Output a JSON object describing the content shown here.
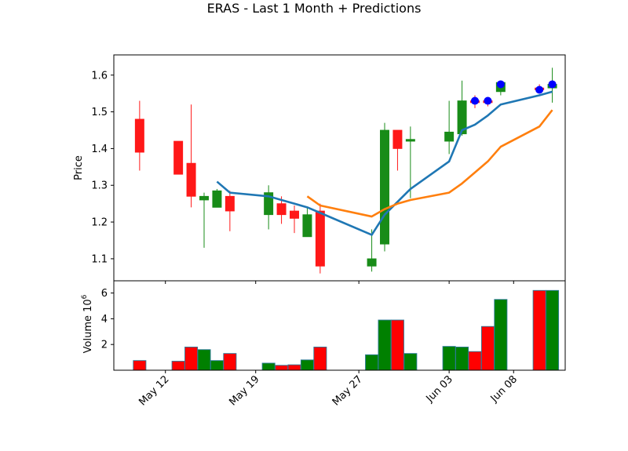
{
  "chart_data": {
    "type": "candlestick",
    "title": "ERAS - Last 1 Month + Predictions",
    "price_panel": {
      "ylabel": "Price",
      "ylim": [
        1.04,
        1.655
      ],
      "yticks": [
        "1.1",
        "1.2",
        "1.3",
        "1.4",
        "1.5",
        "1.6"
      ],
      "ytick_values": [
        1.1,
        1.2,
        1.3,
        1.4,
        1.5,
        1.6
      ],
      "candles": [
        {
          "date": "2024-05-10",
          "open": 1.48,
          "high": 1.53,
          "low": 1.34,
          "close": 1.39
        },
        {
          "date": "2024-05-13",
          "open": 1.42,
          "high": 1.42,
          "low": 1.33,
          "close": 1.33
        },
        {
          "date": "2024-05-14",
          "open": 1.36,
          "high": 1.52,
          "low": 1.24,
          "close": 1.27
        },
        {
          "date": "2024-05-15",
          "open": 1.26,
          "high": 1.28,
          "low": 1.13,
          "close": 1.27
        },
        {
          "date": "2024-05-16",
          "open": 1.24,
          "high": 1.29,
          "low": 1.24,
          "close": 1.285
        },
        {
          "date": "2024-05-17",
          "open": 1.27,
          "high": 1.285,
          "low": 1.175,
          "close": 1.23
        },
        {
          "date": "2024-05-20",
          "open": 1.22,
          "high": 1.3,
          "low": 1.18,
          "close": 1.28
        },
        {
          "date": "2024-05-21",
          "open": 1.25,
          "high": 1.27,
          "low": 1.195,
          "close": 1.22
        },
        {
          "date": "2024-05-22",
          "open": 1.23,
          "high": 1.245,
          "low": 1.17,
          "close": 1.21
        },
        {
          "date": "2024-05-23",
          "open": 1.16,
          "high": 1.24,
          "low": 1.16,
          "close": 1.22
        },
        {
          "date": "2024-05-24",
          "open": 1.23,
          "high": 1.25,
          "low": 1.06,
          "close": 1.08
        },
        {
          "date": "2024-05-28",
          "open": 1.08,
          "high": 1.18,
          "low": 1.065,
          "close": 1.1
        },
        {
          "date": "2024-05-29",
          "open": 1.14,
          "high": 1.47,
          "low": 1.12,
          "close": 1.45
        },
        {
          "date": "2024-05-30",
          "open": 1.45,
          "high": 1.45,
          "low": 1.34,
          "close": 1.4
        },
        {
          "date": "2024-05-31",
          "open": 1.42,
          "high": 1.46,
          "low": 1.265,
          "close": 1.425
        },
        {
          "date": "2024-06-03",
          "open": 1.42,
          "high": 1.53,
          "low": 1.385,
          "close": 1.445
        },
        {
          "date": "2024-06-04",
          "open": 1.44,
          "high": 1.585,
          "low": 1.435,
          "close": 1.53
        },
        {
          "date": "2024-06-05",
          "open": 1.53,
          "high": 1.545,
          "low": 1.51,
          "close": 1.525
        },
        {
          "date": "2024-06-06",
          "open": 1.53,
          "high": 1.54,
          "low": 1.515,
          "close": 1.525
        },
        {
          "date": "2024-06-07",
          "open": 1.555,
          "high": 1.585,
          "low": 1.545,
          "close": 1.58
        },
        {
          "date": "2024-06-10",
          "open": 1.565,
          "high": 1.575,
          "low": 1.55,
          "close": 1.56
        },
        {
          "date": "2024-06-11",
          "open": 1.565,
          "high": 1.62,
          "low": 1.525,
          "close": 1.575
        }
      ],
      "ma_short": {
        "color": "#1f77b4",
        "points": [
          [
            "2024-05-16",
            1.31
          ],
          [
            "2024-05-17",
            1.28
          ],
          [
            "2024-05-20",
            1.27
          ],
          [
            "2024-05-21",
            1.26
          ],
          [
            "2024-05-22",
            1.25
          ],
          [
            "2024-05-23",
            1.24
          ],
          [
            "2024-05-24",
            1.225
          ],
          [
            "2024-05-28",
            1.165
          ],
          [
            "2024-05-29",
            1.22
          ],
          [
            "2024-05-30",
            1.255
          ],
          [
            "2024-05-31",
            1.29
          ],
          [
            "2024-06-03",
            1.365
          ],
          [
            "2024-06-04",
            1.45
          ],
          [
            "2024-06-05",
            1.465
          ],
          [
            "2024-06-06",
            1.49
          ],
          [
            "2024-06-07",
            1.52
          ],
          [
            "2024-06-10",
            1.545
          ],
          [
            "2024-06-11",
            1.555
          ]
        ]
      },
      "ma_long": {
        "color": "#ff7f0e",
        "points": [
          [
            "2024-05-23",
            1.27
          ],
          [
            "2024-05-24",
            1.245
          ],
          [
            "2024-05-28",
            1.215
          ],
          [
            "2024-05-29",
            1.235
          ],
          [
            "2024-05-30",
            1.25
          ],
          [
            "2024-05-31",
            1.26
          ],
          [
            "2024-06-03",
            1.28
          ],
          [
            "2024-06-04",
            1.305
          ],
          [
            "2024-06-05",
            1.335
          ],
          [
            "2024-06-06",
            1.365
          ],
          [
            "2024-06-07",
            1.405
          ],
          [
            "2024-06-10",
            1.46
          ],
          [
            "2024-06-11",
            1.505
          ]
        ]
      },
      "predictions": {
        "color": "#0000ff",
        "points": [
          [
            "2024-06-05",
            1.53
          ],
          [
            "2024-06-06",
            1.53
          ],
          [
            "2024-06-07",
            1.575
          ],
          [
            "2024-06-10",
            1.56
          ],
          [
            "2024-06-11",
            1.575
          ]
        ]
      }
    },
    "volume_panel": {
      "ylabel": "Volume  10",
      "ylabel_exponent": "6",
      "ylim": [
        0,
        6.95
      ],
      "yticks": [
        "2",
        "4",
        "6"
      ],
      "ytick_values": [
        2,
        4,
        6
      ],
      "bars": [
        {
          "date": "2024-05-10",
          "value": 0.75,
          "color": "red"
        },
        {
          "date": "2024-05-13",
          "value": 0.7,
          "color": "red"
        },
        {
          "date": "2024-05-14",
          "value": 1.8,
          "color": "red"
        },
        {
          "date": "2024-05-15",
          "value": 1.6,
          "color": "green"
        },
        {
          "date": "2024-05-16",
          "value": 0.75,
          "color": "green"
        },
        {
          "date": "2024-05-17",
          "value": 1.3,
          "color": "red"
        },
        {
          "date": "2024-05-20",
          "value": 0.55,
          "color": "green"
        },
        {
          "date": "2024-05-21",
          "value": 0.38,
          "color": "red"
        },
        {
          "date": "2024-05-22",
          "value": 0.42,
          "color": "red"
        },
        {
          "date": "2024-05-23",
          "value": 0.8,
          "color": "green"
        },
        {
          "date": "2024-05-24",
          "value": 1.8,
          "color": "red"
        },
        {
          "date": "2024-05-28",
          "value": 1.2,
          "color": "green"
        },
        {
          "date": "2024-05-29",
          "value": 3.9,
          "color": "green"
        },
        {
          "date": "2024-05-30",
          "value": 3.9,
          "color": "red"
        },
        {
          "date": "2024-05-31",
          "value": 1.3,
          "color": "green"
        },
        {
          "date": "2024-06-03",
          "value": 1.85,
          "color": "green"
        },
        {
          "date": "2024-06-04",
          "value": 1.8,
          "color": "green"
        },
        {
          "date": "2024-06-05",
          "value": 1.45,
          "color": "red"
        },
        {
          "date": "2024-06-06",
          "value": 3.4,
          "color": "red"
        },
        {
          "date": "2024-06-07",
          "value": 5.5,
          "color": "green"
        },
        {
          "date": "2024-06-10",
          "value": 6.2,
          "color": "red"
        },
        {
          "date": "2024-06-11",
          "value": 6.2,
          "color": "green"
        }
      ]
    },
    "x_axis": {
      "range": [
        "2024-05-08",
        "2024-06-12"
      ],
      "ticks": [
        {
          "date": "2024-05-12",
          "label": "May 12"
        },
        {
          "date": "2024-05-19",
          "label": "May 19"
        },
        {
          "date": "2024-05-27",
          "label": "May 27"
        },
        {
          "date": "2024-06-03",
          "label": "Jun 03"
        },
        {
          "date": "2024-06-08",
          "label": "Jun 08"
        }
      ]
    },
    "colors": {
      "up": "#008000",
      "down": "#ff0000"
    },
    "grid": false
  }
}
